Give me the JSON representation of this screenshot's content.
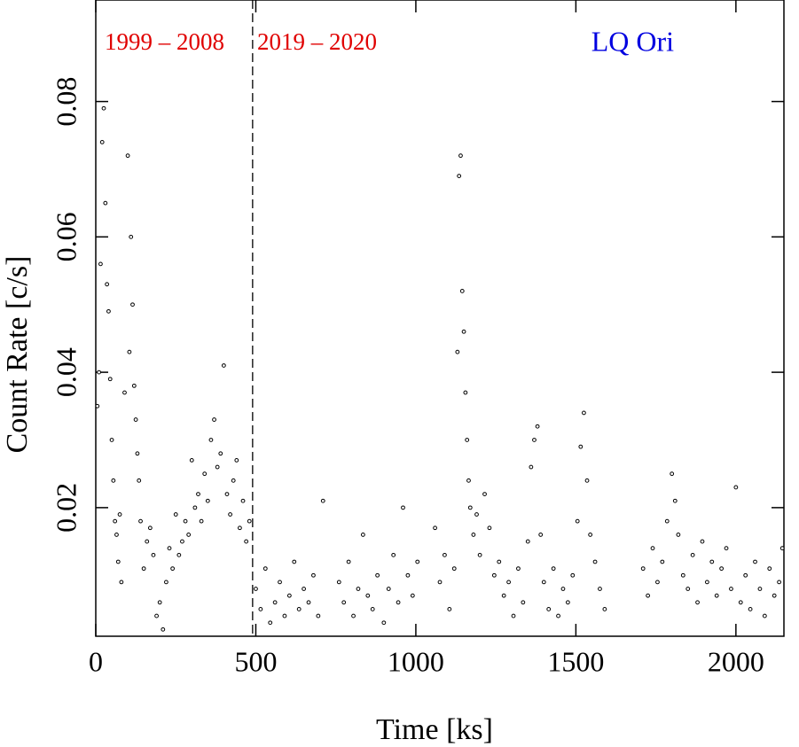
{
  "chart_data": {
    "type": "scatter",
    "xlabel": "Time [ks]",
    "ylabel": "Count Rate [c/s]",
    "annotations": [
      {
        "text": "1999 – 2008",
        "color": "#e00000"
      },
      {
        "text": "2019 – 2020",
        "color": "#e00000"
      },
      {
        "text": "LQ Ori",
        "color": "#0000e0"
      }
    ],
    "divider_x": 490,
    "xlim": [
      0,
      2150
    ],
    "ylim": [
      0.001,
      0.095
    ],
    "xticks": [
      0,
      500,
      1000,
      1500,
      2000
    ],
    "yticks": [
      0.02,
      0.04,
      0.06,
      0.08
    ],
    "color": "#000000",
    "x": [
      5,
      10,
      15,
      20,
      25,
      30,
      35,
      40,
      45,
      50,
      55,
      60,
      65,
      70,
      75,
      80,
      90,
      100,
      105,
      110,
      115,
      120,
      125,
      130,
      135,
      140,
      150,
      160,
      170,
      180,
      190,
      200,
      210,
      220,
      230,
      240,
      250,
      260,
      270,
      280,
      290,
      300,
      310,
      320,
      330,
      340,
      350,
      360,
      370,
      380,
      390,
      400,
      410,
      420,
      430,
      440,
      450,
      460,
      470,
      480,
      500,
      515,
      530,
      545,
      560,
      575,
      590,
      605,
      620,
      635,
      650,
      665,
      680,
      695,
      710,
      760,
      775,
      790,
      805,
      820,
      835,
      850,
      865,
      880,
      900,
      915,
      930,
      945,
      960,
      975,
      990,
      1005,
      1060,
      1075,
      1090,
      1105,
      1120,
      1130,
      1135,
      1140,
      1145,
      1150,
      1155,
      1160,
      1165,
      1170,
      1180,
      1190,
      1200,
      1215,
      1230,
      1245,
      1260,
      1275,
      1290,
      1305,
      1320,
      1335,
      1350,
      1360,
      1370,
      1380,
      1390,
      1400,
      1415,
      1430,
      1445,
      1460,
      1475,
      1490,
      1505,
      1515,
      1525,
      1535,
      1545,
      1560,
      1575,
      1590,
      1710,
      1725,
      1740,
      1755,
      1770,
      1785,
      1800,
      1810,
      1820,
      1835,
      1850,
      1865,
      1880,
      1895,
      1910,
      1925,
      1940,
      1955,
      1970,
      1985,
      2000,
      2015,
      2030,
      2045,
      2060,
      2075,
      2090,
      2105,
      2120,
      2135,
      2145
    ],
    "values": [
      0.035,
      0.04,
      0.056,
      0.074,
      0.079,
      0.065,
      0.053,
      0.049,
      0.039,
      0.03,
      0.024,
      0.018,
      0.016,
      0.012,
      0.019,
      0.009,
      0.037,
      0.072,
      0.043,
      0.06,
      0.05,
      0.038,
      0.033,
      0.028,
      0.024,
      0.018,
      0.011,
      0.015,
      0.017,
      0.013,
      0.004,
      0.006,
      0.002,
      0.009,
      0.014,
      0.011,
      0.019,
      0.013,
      0.015,
      0.018,
      0.016,
      0.027,
      0.02,
      0.022,
      0.018,
      0.025,
      0.021,
      0.03,
      0.033,
      0.026,
      0.028,
      0.041,
      0.022,
      0.019,
      0.024,
      0.027,
      0.017,
      0.021,
      0.015,
      0.018,
      0.008,
      0.005,
      0.011,
      0.003,
      0.006,
      0.009,
      0.004,
      0.007,
      0.012,
      0.005,
      0.008,
      0.006,
      0.01,
      0.004,
      0.021,
      0.009,
      0.006,
      0.012,
      0.004,
      0.008,
      0.016,
      0.007,
      0.005,
      0.01,
      0.003,
      0.008,
      0.013,
      0.006,
      0.02,
      0.01,
      0.007,
      0.012,
      0.017,
      0.009,
      0.013,
      0.005,
      0.011,
      0.043,
      0.069,
      0.072,
      0.052,
      0.046,
      0.037,
      0.03,
      0.024,
      0.02,
      0.016,
      0.019,
      0.013,
      0.022,
      0.017,
      0.01,
      0.012,
      0.007,
      0.009,
      0.004,
      0.011,
      0.006,
      0.015,
      0.026,
      0.03,
      0.032,
      0.016,
      0.009,
      0.005,
      0.011,
      0.004,
      0.008,
      0.006,
      0.01,
      0.018,
      0.029,
      0.034,
      0.024,
      0.016,
      0.012,
      0.008,
      0.005,
      0.011,
      0.007,
      0.014,
      0.009,
      0.012,
      0.018,
      0.025,
      0.021,
      0.016,
      0.01,
      0.008,
      0.013,
      0.006,
      0.015,
      0.009,
      0.012,
      0.007,
      0.011,
      0.014,
      0.008,
      0.023,
      0.006,
      0.01,
      0.005,
      0.012,
      0.008,
      0.004,
      0.011,
      0.007,
      0.009,
      0.014
    ]
  }
}
